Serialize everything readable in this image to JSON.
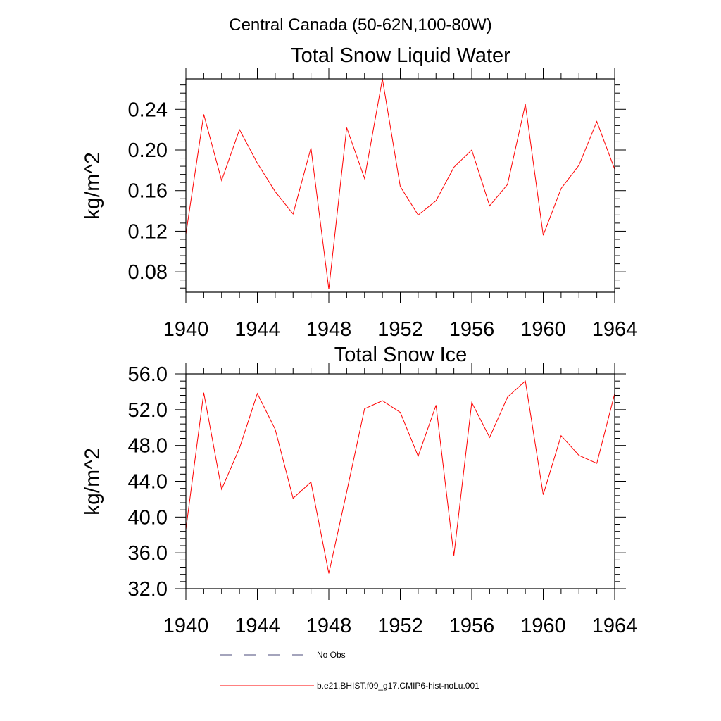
{
  "suptitle": "Central Canada (50-62N,100-80W)",
  "chart_data": [
    {
      "type": "line",
      "title": "Total Snow Liquid Water",
      "ylabel": "kg/m^2",
      "xlabel": "",
      "xlim": [
        1940,
        1964
      ],
      "ylim": [
        0.06,
        0.27
      ],
      "xticks": [
        1940,
        1944,
        1948,
        1952,
        1956,
        1960,
        1964
      ],
      "xticklabels": [
        "1940",
        "1944",
        "1948",
        "1952",
        "1956",
        "1960",
        "1964"
      ],
      "yticks": [
        0.08,
        0.12,
        0.16,
        0.2,
        0.24
      ],
      "yticklabels": [
        "0.08",
        "0.12",
        "0.16",
        "0.20",
        "0.24"
      ],
      "x": [
        1940,
        1941,
        1942,
        1943,
        1944,
        1945,
        1946,
        1947,
        1948,
        1949,
        1950,
        1951,
        1952,
        1953,
        1954,
        1955,
        1956,
        1957,
        1958,
        1959,
        1960,
        1961,
        1962,
        1963,
        1964
      ],
      "series": [
        {
          "name": "b.e21.BHIST.f09_g17.CMIP6-hist-noLu.001",
          "color": "#ff0000",
          "values": [
            0.117,
            0.235,
            0.17,
            0.22,
            0.187,
            0.159,
            0.137,
            0.202,
            0.063,
            0.222,
            0.172,
            0.27,
            0.164,
            0.136,
            0.15,
            0.183,
            0.2,
            0.145,
            0.166,
            0.245,
            0.116,
            0.162,
            0.185,
            0.228,
            0.181
          ]
        }
      ]
    },
    {
      "type": "line",
      "title": "Total Snow Ice",
      "ylabel": "kg/m^2",
      "xlabel": "",
      "xlim": [
        1940,
        1964
      ],
      "ylim": [
        32.0,
        56.0
      ],
      "xticks": [
        1940,
        1944,
        1948,
        1952,
        1956,
        1960,
        1964
      ],
      "xticklabels": [
        "1940",
        "1944",
        "1948",
        "1952",
        "1956",
        "1960",
        "1964"
      ],
      "yticks": [
        32.0,
        36.0,
        40.0,
        44.0,
        48.0,
        52.0,
        56.0
      ],
      "yticklabels": [
        "32.0",
        "36.0",
        "40.0",
        "44.0",
        "48.0",
        "52.0",
        "56.0"
      ],
      "x": [
        1940,
        1941,
        1942,
        1943,
        1944,
        1945,
        1946,
        1947,
        1948,
        1949,
        1950,
        1951,
        1952,
        1953,
        1954,
        1955,
        1956,
        1957,
        1958,
        1959,
        1960,
        1961,
        1962,
        1963,
        1964
      ],
      "series": [
        {
          "name": "b.e21.BHIST.f09_g17.CMIP6-hist-noLu.001",
          "color": "#ff0000",
          "values": [
            38.6,
            53.9,
            43.1,
            47.7,
            53.8,
            49.8,
            42.1,
            43.9,
            33.7,
            42.8,
            52.1,
            53.0,
            51.7,
            46.8,
            52.5,
            35.7,
            52.8,
            48.9,
            53.4,
            55.2,
            42.5,
            49.1,
            46.9,
            46.0,
            53.8
          ]
        }
      ]
    }
  ],
  "legend": {
    "placement": "bottom",
    "items": [
      {
        "label": "No Obs",
        "style": "dashed",
        "color": "#4a4a7a"
      },
      {
        "label": "b.e21.BHIST.f09_g17.CMIP6-hist-noLu.001",
        "style": "solid",
        "color": "#ff0000"
      }
    ]
  }
}
